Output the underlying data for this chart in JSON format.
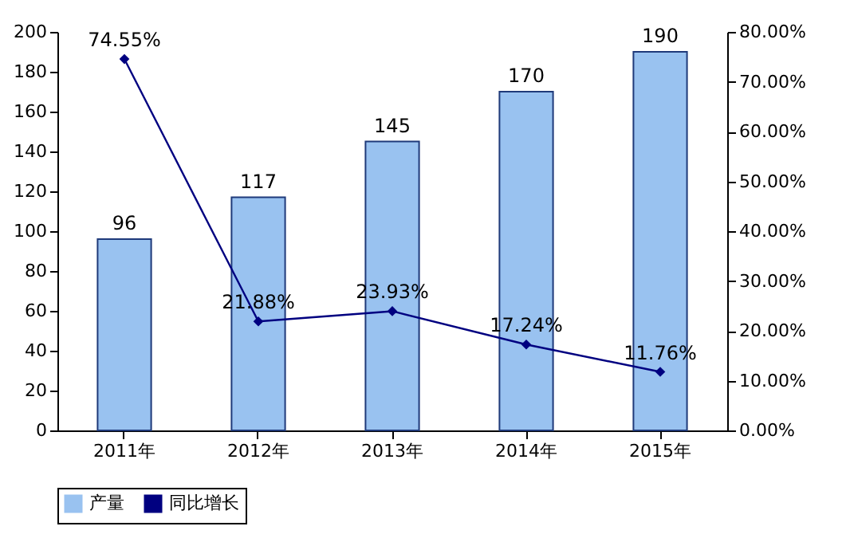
{
  "chart_data": {
    "type": "bar",
    "categories": [
      "2011年",
      "2012年",
      "2013年",
      "2014年",
      "2015年"
    ],
    "series": [
      {
        "name": "产量",
        "color": "#99c2f0",
        "values": [
          96,
          117,
          145,
          170,
          190
        ],
        "value_labels": [
          "96",
          "117",
          "145",
          "170",
          "190"
        ]
      },
      {
        "name": "同比增长",
        "type": "line",
        "axis": "y2",
        "color": "#000080",
        "values": [
          74.55,
          21.88,
          23.93,
          17.24,
          11.76
        ],
        "value_labels": [
          "74.55%",
          "21.88%",
          "23.93%",
          "17.24%",
          "11.76%"
        ]
      }
    ],
    "ylim": [
      0,
      200
    ],
    "yticks": [
      0,
      20,
      40,
      60,
      80,
      100,
      120,
      140,
      160,
      180,
      200
    ],
    "y2lim": [
      0,
      80
    ],
    "y2ticks": [
      {
        "value": 0,
        "label": "0.00%"
      },
      {
        "value": 10,
        "label": "10.00%"
      },
      {
        "value": 20,
        "label": "20.00%"
      },
      {
        "value": 30,
        "label": "30.00%"
      },
      {
        "value": 40,
        "label": "40.00%"
      },
      {
        "value": 50,
        "label": "50.00%"
      },
      {
        "value": 60,
        "label": "60.00%"
      },
      {
        "value": 70,
        "label": "70.00%"
      },
      {
        "value": 80,
        "label": "80.00%"
      }
    ],
    "legend": "bottom",
    "marker": "diamond",
    "line_style": "solid"
  }
}
